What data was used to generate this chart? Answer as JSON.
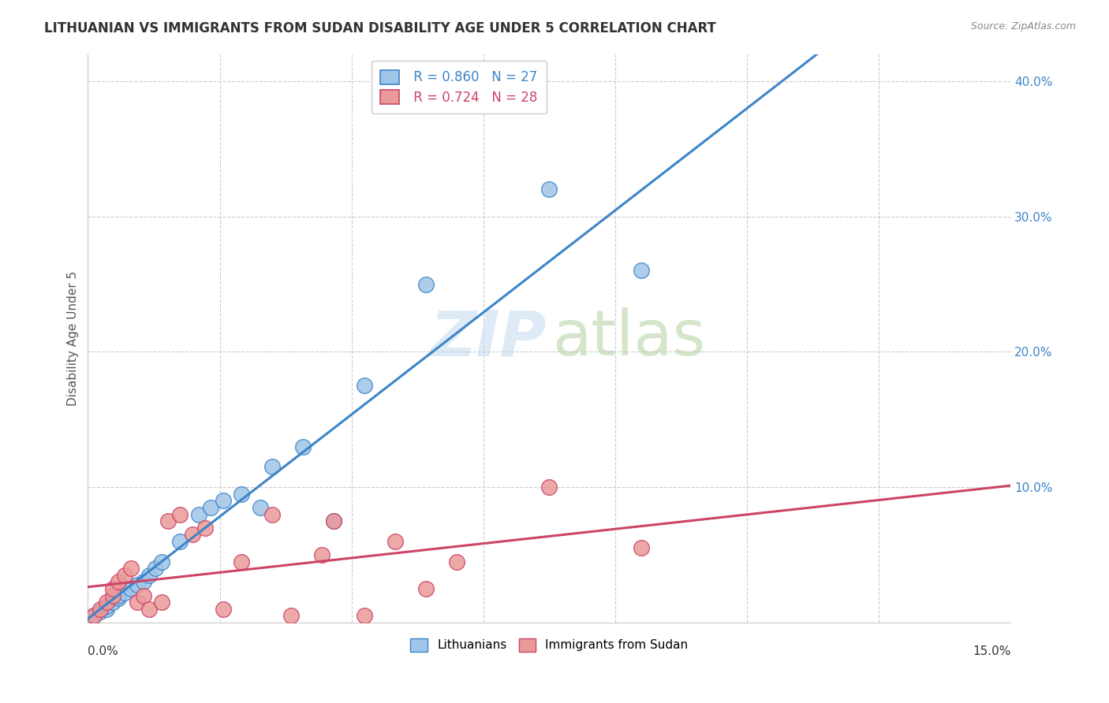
{
  "title": "LITHUANIAN VS IMMIGRANTS FROM SUDAN DISABILITY AGE UNDER 5 CORRELATION CHART",
  "source": "Source: ZipAtlas.com",
  "ylabel": "Disability Age Under 5",
  "xlim": [
    0.0,
    0.15
  ],
  "ylim": [
    0.0,
    0.42
  ],
  "blue_color": "#9fc5e8",
  "pink_color": "#ea9999",
  "blue_line_color": "#3d85c8",
  "pink_line_color": "#cc4466",
  "legend_r_blue": "R = 0.860",
  "legend_n_blue": "N = 27",
  "legend_r_pink": "R = 0.724",
  "legend_n_pink": "N = 28",
  "blue_scatter_x": [
    0.001,
    0.002,
    0.003,
    0.003,
    0.004,
    0.005,
    0.005,
    0.006,
    0.007,
    0.008,
    0.009,
    0.01,
    0.011,
    0.012,
    0.015,
    0.018,
    0.02,
    0.022,
    0.025,
    0.028,
    0.03,
    0.035,
    0.04,
    0.045,
    0.055,
    0.075,
    0.09
  ],
  "blue_scatter_y": [
    0.005,
    0.008,
    0.01,
    0.012,
    0.015,
    0.018,
    0.02,
    0.022,
    0.025,
    0.028,
    0.03,
    0.035,
    0.04,
    0.045,
    0.06,
    0.08,
    0.085,
    0.09,
    0.095,
    0.085,
    0.115,
    0.13,
    0.075,
    0.175,
    0.25,
    0.32,
    0.26
  ],
  "pink_scatter_x": [
    0.001,
    0.002,
    0.003,
    0.004,
    0.004,
    0.005,
    0.006,
    0.007,
    0.008,
    0.009,
    0.01,
    0.012,
    0.013,
    0.015,
    0.017,
    0.019,
    0.022,
    0.025,
    0.03,
    0.033,
    0.038,
    0.04,
    0.045,
    0.05,
    0.055,
    0.06,
    0.075,
    0.09
  ],
  "pink_scatter_y": [
    0.005,
    0.01,
    0.015,
    0.02,
    0.025,
    0.03,
    0.035,
    0.04,
    0.015,
    0.02,
    0.01,
    0.015,
    0.075,
    0.08,
    0.065,
    0.07,
    0.01,
    0.045,
    0.08,
    0.005,
    0.05,
    0.075,
    0.005,
    0.06,
    0.025,
    0.045,
    0.1,
    0.055
  ]
}
